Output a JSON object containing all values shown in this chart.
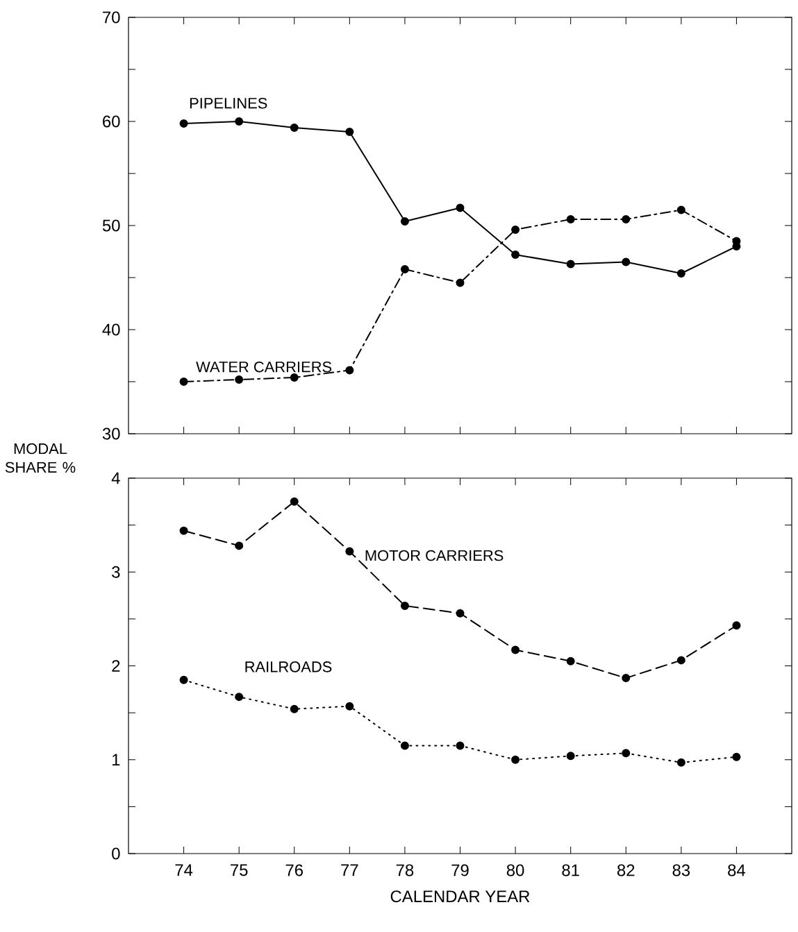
{
  "chart_data": [
    {
      "type": "line",
      "x": [
        74,
        75,
        76,
        77,
        78,
        79,
        80,
        81,
        82,
        83,
        84
      ],
      "xlim": [
        73,
        85
      ],
      "xticks": [
        74,
        75,
        76,
        77,
        78,
        79,
        80,
        81,
        82,
        83,
        84
      ],
      "ylim": [
        30,
        70
      ],
      "yticks": [
        30,
        {
          "value": 35,
          "label": null
        },
        40,
        {
          "value": 45,
          "label": null
        },
        50,
        {
          "value": 55,
          "label": null
        },
        60,
        {
          "value": 65,
          "label": null
        },
        70
      ],
      "tick_labels": "y",
      "marker": "circle",
      "grid": false,
      "legend": false,
      "series": [
        {
          "name": "PIPELINES",
          "color": "#000000",
          "line_style": "solid",
          "values": [
            59.8,
            60.0,
            59.4,
            59.0,
            50.4,
            51.7,
            47.2,
            46.3,
            46.5,
            45.4,
            48.0
          ]
        },
        {
          "name": "WATER CARRIERS",
          "color": "#000000",
          "line_style": "dashdot",
          "values": [
            35.0,
            35.2,
            35.4,
            36.1,
            45.8,
            44.5,
            49.6,
            50.6,
            50.6,
            51.5,
            48.5
          ]
        }
      ]
    },
    {
      "type": "line",
      "x": [
        74,
        75,
        76,
        77,
        78,
        79,
        80,
        81,
        82,
        83,
        84
      ],
      "xlim": [
        73,
        85
      ],
      "xticks": [
        74,
        75,
        76,
        77,
        78,
        79,
        80,
        81,
        82,
        83,
        84
      ],
      "ylim": [
        0,
        4
      ],
      "yticks": [
        0,
        {
          "value": 0.5,
          "label": null
        },
        1,
        {
          "value": 1.5,
          "label": null
        },
        2,
        {
          "value": 2.5,
          "label": null
        },
        3,
        {
          "value": 3.5,
          "label": null
        },
        4
      ],
      "xlabel": "CALENDAR YEAR",
      "ylabel": "MODAL SHARE %",
      "marker": "circle",
      "grid": false,
      "legend": false,
      "series": [
        {
          "name": "MOTOR CARRIERS",
          "color": "#000000",
          "line_style": "dashed",
          "values": [
            3.44,
            3.28,
            3.75,
            3.22,
            2.64,
            2.56,
            2.17,
            2.05,
            1.87,
            2.06,
            2.43
          ]
        },
        {
          "name": "RAILROADS",
          "color": "#000000",
          "line_style": "dotted",
          "values": [
            1.85,
            1.67,
            1.54,
            1.57,
            1.15,
            1.15,
            1.0,
            1.04,
            1.07,
            0.97,
            1.03
          ]
        }
      ]
    }
  ]
}
